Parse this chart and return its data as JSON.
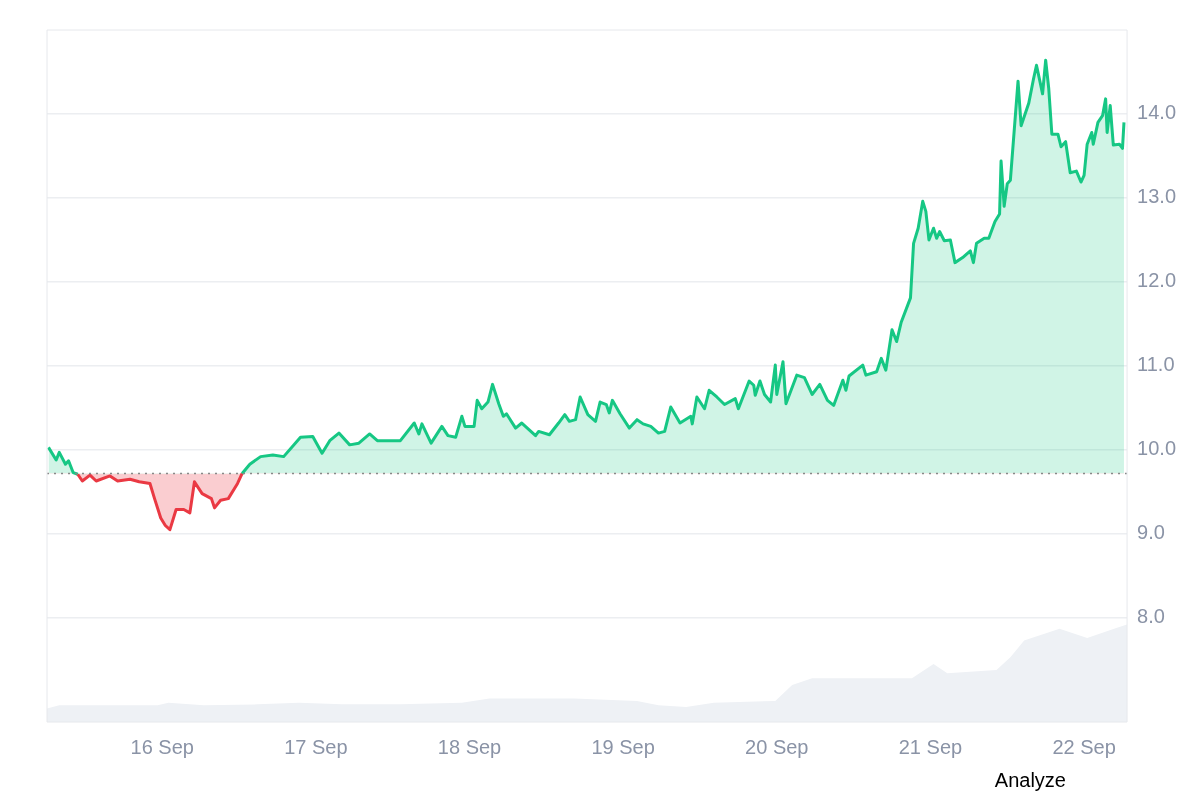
{
  "chart_data": {
    "type": "area",
    "xlim": [
      "--09-15T06:00",
      "--09-22T06:43"
    ],
    "ylim": [
      6.76,
      15.0
    ],
    "xticks": [
      {
        "value": "--09-16",
        "label": "16 Sep"
      },
      {
        "value": "--09-17",
        "label": "17 Sep"
      },
      {
        "value": "--09-18",
        "label": "18 Sep"
      },
      {
        "value": "--09-19",
        "label": "19 Sep"
      },
      {
        "value": "--09-20",
        "label": "20 Sep"
      },
      {
        "value": "--09-21",
        "label": "21 Sep"
      },
      {
        "value": "--09-22",
        "label": "22 Sep"
      }
    ],
    "yticks": [
      {
        "value": 8,
        "label": "8.0"
      },
      {
        "value": 9,
        "label": "9.0"
      },
      {
        "value": 10,
        "label": "10.0"
      },
      {
        "value": 11,
        "label": "11.0"
      },
      {
        "value": 12,
        "label": "12.0"
      },
      {
        "value": 13,
        "label": "13.0"
      },
      {
        "value": 14,
        "label": "14.0"
      }
    ],
    "grid": "y",
    "legend": false,
    "marker": "none",
    "ref_lines": [
      {
        "axis": "y",
        "value": 9.72,
        "color": "#888888",
        "line_style": "dotted"
      }
    ],
    "annotations": [
      "Analyze"
    ],
    "series": [
      {
        "color": "#eef1f5",
        "x": [
          "--09-15T06:00",
          "--09-15T07:55",
          "--09-15T23:17",
          "--09-16T00:58",
          "--09-16T06:29",
          "--09-16T14:53",
          "--09-16T21:22",
          "--09-17T04:05",
          "--09-17T13:12",
          "--09-17T22:48",
          "--09-18T03:07",
          "--09-18T16:19",
          "--09-19T02:10",
          "--09-19T05:31",
          "--09-19T09:50",
          "--09-19T14:10",
          "--09-19T23:46",
          "--09-20T02:24",
          "--09-20T05:31",
          "--09-20T21:07",
          "--09-21T00:29",
          "--09-21T02:38",
          "--09-21T10:19",
          "--09-21T12:29",
          "--09-21T14:38",
          "--09-21T20:10",
          "--09-22T00:29",
          "--09-22T05:02",
          "--09-22T06:43"
        ],
        "values": [
          6.92,
          6.96,
          6.96,
          6.99,
          6.96,
          6.97,
          6.99,
          6.97,
          6.97,
          6.99,
          7.04,
          7.04,
          7.01,
          6.96,
          6.94,
          6.99,
          7.01,
          7.2,
          7.28,
          7.28,
          7.45,
          7.34,
          7.38,
          7.53,
          7.73,
          7.87,
          7.76,
          7.88,
          7.92
        ]
      },
      {
        "color": "#16c784",
        "x": [
          "--09-15T06:14",
          "--09-15T07:26",
          "--09-15T07:55",
          "--09-15T08:53",
          "--09-15T09:22",
          "--09-15T10:05",
          "--09-15T10:48",
          "--09-15T11:31",
          "--09-15T12:43",
          "--09-15T13:41",
          "--09-15T15:50",
          "--09-15T17:02",
          "--09-15T18:58",
          "--09-15T20:24",
          "--09-15T22:05",
          "--09-15T22:48",
          "--09-15T23:46",
          "--09-16T00:29",
          "--09-16T01:12",
          "--09-16T02:10",
          "--09-16T03:22",
          "--09-16T04:19",
          "--09-16T05:02",
          "--09-16T06:14",
          "--09-16T07:41",
          "--09-16T08:10",
          "--09-16T09:07",
          "--09-16T10:19",
          "--09-16T11:46",
          "--09-16T12:29",
          "--09-16T13:41",
          "--09-16T15:22",
          "--09-16T17:17",
          "--09-16T18:58",
          "--09-16T21:36",
          "--09-16T23:31",
          "--09-17T00:58",
          "--09-17T02:10",
          "--09-17T03:36",
          "--09-17T05:17",
          "--09-17T06:43",
          "--09-17T08:24",
          "--09-17T09:36",
          "--09-17T13:12",
          "--09-17T15:22",
          "--09-17T16:05",
          "--09-17T16:34",
          "--09-17T18:00",
          "--09-17T19:41",
          "--09-17T20:38",
          "--09-17T21:50",
          "--09-17T22:48",
          "--09-17T23:17",
          "--09-18T00:43",
          "--09-18T01:12",
          "--09-18T01:55",
          "--09-18T02:53",
          "--09-18T03:36",
          "--09-18T04:34",
          "--09-18T05:17",
          "--09-18T05:46",
          "--09-18T07:12",
          "--09-18T08:10",
          "--09-18T10:19",
          "--09-18T10:48",
          "--09-18T12:29",
          "--09-18T13:55",
          "--09-18T14:53",
          "--09-18T15:36",
          "--09-18T16:34",
          "--09-18T17:17",
          "--09-18T18:29",
          "--09-18T19:41",
          "--09-18T20:24",
          "--09-18T21:22",
          "--09-18T21:50",
          "--09-18T22:19",
          "--09-18T23:31",
          "--09-19T00:58",
          "--09-19T02:10",
          "--09-19T03:07",
          "--09-19T04:19",
          "--09-19T05:31",
          "--09-19T06:29",
          "--09-19T07:26",
          "--09-19T08:53",
          "--09-19T10:34",
          "--09-19T10:48",
          "--09-19T11:31",
          "--09-19T12:43",
          "--09-19T13:26",
          "--09-19T14:38",
          "--09-19T15:50",
          "--09-19T17:31",
          "--09-19T18:00",
          "--09-19T19:41",
          "--09-19T20:24",
          "--09-19T20:38",
          "--09-19T21:22",
          "--09-19T22:05",
          "--09-19T23:02",
          "--09-19T23:46",
          "--09-20T00:00",
          "--09-20T00:58",
          "--09-20T01:26",
          "--09-20T03:07",
          "--09-20T04:19",
          "--09-20T05:31",
          "--09-20T06:43",
          "--09-20T07:55",
          "--09-20T08:53",
          "--09-20T10:19",
          "--09-20T10:48",
          "--09-20T11:17",
          "--09-20T13:26",
          "--09-20T13:55",
          "--09-20T15:36",
          "--09-20T16:19",
          "--09-20T17:02",
          "--09-20T18:00",
          "--09-20T18:43",
          "--09-20T19:26",
          "--09-20T20:53",
          "--09-20T21:22",
          "--09-20T22:05",
          "--09-20T22:48",
          "--09-20T23:17",
          "--09-20T23:46",
          "--09-21T00:29",
          "--09-21T00:58",
          "--09-21T01:26",
          "--09-21T02:10",
          "--09-21T03:07",
          "--09-21T03:50",
          "--09-21T05:02",
          "--09-21T06:14",
          "--09-21T06:43",
          "--09-21T07:12",
          "--09-21T08:24",
          "--09-21T09:07",
          "--09-21T10:05",
          "--09-21T10:48",
          "--09-21T11:02",
          "--09-21T11:31",
          "--09-21T12:00",
          "--09-21T12:29",
          "--09-21T13:41",
          "--09-21T14:10",
          "--09-21T15:22",
          "--09-21T16:05",
          "--09-21T16:34",
          "--09-21T17:31",
          "--09-21T18:00",
          "--09-21T18:29",
          "--09-21T18:58",
          "--09-21T19:55",
          "--09-21T20:24",
          "--09-21T21:07",
          "--09-21T21:50",
          "--09-21T22:48",
          "--09-21T23:31",
          "--09-22T00:00",
          "--09-22T00:29",
          "--09-22T01:12",
          "--09-22T01:26",
          "--09-22T02:10",
          "--09-22T02:53",
          "--09-22T03:22",
          "--09-22T03:36",
          "--09-22T04:05",
          "--09-22T04:34",
          "--09-22T05:31",
          "--09-22T06:00",
          "--09-22T06:14"
        ],
        "values": [
          10.03,
          9.88,
          9.97,
          9.83,
          9.87,
          9.73,
          9.71,
          9.63,
          9.7,
          9.63,
          9.69,
          9.63,
          9.65,
          9.62,
          9.6,
          9.42,
          9.19,
          9.1,
          9.05,
          9.29,
          9.29,
          9.25,
          9.62,
          9.48,
          9.42,
          9.31,
          9.4,
          9.42,
          9.6,
          9.72,
          9.83,
          9.92,
          9.94,
          9.92,
          10.15,
          10.16,
          9.96,
          10.11,
          10.2,
          10.06,
          10.08,
          10.19,
          10.11,
          10.11,
          10.32,
          10.19,
          10.31,
          10.08,
          10.28,
          10.17,
          10.15,
          10.4,
          10.28,
          10.28,
          10.59,
          10.49,
          10.57,
          10.78,
          10.55,
          10.4,
          10.43,
          10.26,
          10.32,
          10.17,
          10.22,
          10.18,
          10.32,
          10.42,
          10.34,
          10.36,
          10.63,
          10.42,
          10.34,
          10.57,
          10.54,
          10.44,
          10.59,
          10.43,
          10.26,
          10.36,
          10.31,
          10.28,
          10.2,
          10.22,
          10.51,
          10.32,
          10.4,
          10.31,
          10.63,
          10.49,
          10.71,
          10.63,
          10.54,
          10.61,
          10.49,
          10.82,
          10.77,
          10.65,
          10.82,
          10.66,
          10.57,
          11.01,
          10.66,
          11.05,
          10.55,
          10.89,
          10.86,
          10.66,
          10.78,
          10.59,
          10.53,
          10.83,
          10.71,
          10.88,
          11.01,
          10.89,
          10.93,
          11.09,
          10.95,
          11.43,
          11.29,
          11.52,
          11.81,
          12.46,
          12.64,
          12.96,
          12.84,
          12.5,
          12.64,
          12.52,
          12.6,
          12.49,
          12.5,
          12.23,
          12.29,
          12.37,
          12.23,
          12.46,
          12.52,
          12.52,
          12.72,
          12.81,
          13.44,
          12.9,
          13.17,
          13.21,
          14.39,
          13.86,
          14.13,
          14.41,
          14.58,
          14.24,
          14.64,
          14.3,
          13.76,
          13.76,
          13.61,
          13.67,
          13.3,
          13.32,
          13.19,
          13.27,
          13.64,
          13.78,
          13.64,
          13.9,
          13.98,
          14.18,
          13.78,
          14.1,
          13.63,
          13.64,
          13.59,
          13.9
        ],
        "colors": [
          "#16c784",
          "#16c784",
          "#16c784",
          "#16c784",
          "#16c784",
          "#16c784",
          "#ea3943",
          "#ea3943",
          "#ea3943",
          "#ea3943",
          "#ea3943",
          "#ea3943",
          "#ea3943",
          "#ea3943",
          "#ea3943",
          "#ea3943",
          "#ea3943",
          "#ea3943",
          "#ea3943",
          "#ea3943",
          "#ea3943",
          "#ea3943",
          "#ea3943",
          "#ea3943",
          "#ea3943",
          "#ea3943",
          "#ea3943",
          "#ea3943",
          "#ea3943",
          "#16c784",
          "#16c784",
          "#16c784",
          "#16c784",
          "#16c784",
          "#16c784",
          "#16c784",
          "#16c784",
          "#16c784",
          "#16c784",
          "#16c784",
          "#16c784",
          "#16c784",
          "#16c784",
          "#16c784",
          "#16c784",
          "#16c784",
          "#16c784",
          "#16c784",
          "#16c784",
          "#16c784",
          "#16c784",
          "#16c784",
          "#16c784",
          "#16c784",
          "#16c784",
          "#16c784",
          "#16c784",
          "#16c784",
          "#16c784",
          "#16c784",
          "#16c784",
          "#16c784",
          "#16c784",
          "#16c784",
          "#16c784",
          "#16c784",
          "#16c784",
          "#16c784",
          "#16c784",
          "#16c784",
          "#16c784",
          "#16c784",
          "#16c784",
          "#16c784",
          "#16c784",
          "#16c784",
          "#16c784",
          "#16c784",
          "#16c784",
          "#16c784",
          "#16c784",
          "#16c784",
          "#16c784",
          "#16c784",
          "#16c784",
          "#16c784",
          "#16c784",
          "#16c784",
          "#16c784",
          "#16c784",
          "#16c784",
          "#16c784",
          "#16c784",
          "#16c784",
          "#16c784",
          "#16c784",
          "#16c784",
          "#16c784",
          "#16c784",
          "#16c784",
          "#16c784",
          "#16c784",
          "#16c784",
          "#16c784",
          "#16c784",
          "#16c784",
          "#16c784",
          "#16c784",
          "#16c784",
          "#16c784",
          "#16c784",
          "#16c784",
          "#16c784",
          "#16c784",
          "#16c784",
          "#16c784",
          "#16c784",
          "#16c784",
          "#16c784",
          "#16c784",
          "#16c784",
          "#16c784",
          "#16c784",
          "#16c784",
          "#16c784",
          "#16c784",
          "#16c784",
          "#16c784",
          "#16c784",
          "#16c784",
          "#16c784",
          "#16c784",
          "#16c784",
          "#16c784",
          "#16c784",
          "#16c784",
          "#16c784",
          "#16c784",
          "#16c784",
          "#16c784",
          "#16c784",
          "#16c784",
          "#16c784",
          "#16c784",
          "#16c784",
          "#16c784",
          "#16c784",
          "#16c784",
          "#16c784",
          "#16c784",
          "#16c784",
          "#16c784",
          "#16c784",
          "#16c784",
          "#16c784",
          "#16c784",
          "#16c784",
          "#16c784",
          "#16c784",
          "#16c784",
          "#16c784",
          "#16c784",
          "#16c784",
          "#16c784",
          "#16c784",
          "#16c784",
          "#16c784",
          "#16c784",
          "#16c784",
          "#16c784",
          "#16c784",
          "#16c784",
          "#16c784",
          "#16c784"
        ]
      }
    ]
  }
}
